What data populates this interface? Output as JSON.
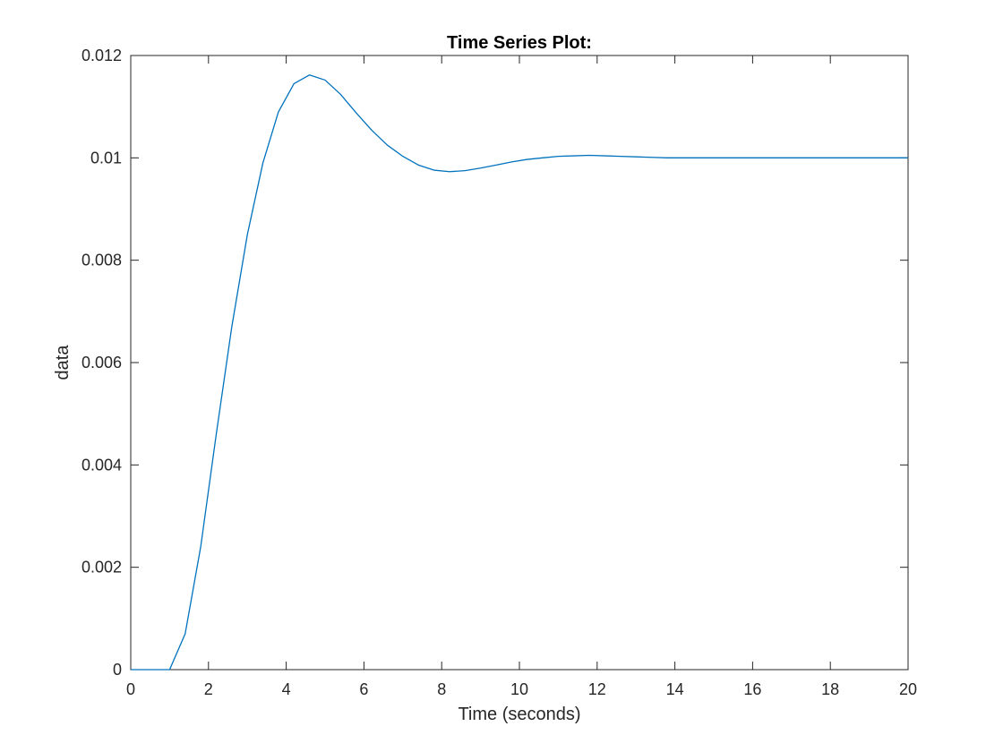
{
  "chart_data": {
    "type": "line",
    "title": "Time Series Plot:",
    "xlabel": "Time (seconds)",
    "ylabel": "data",
    "xlim": [
      0,
      20
    ],
    "ylim": [
      0,
      0.012
    ],
    "xticks": [
      0,
      2,
      4,
      6,
      8,
      10,
      12,
      14,
      16,
      18,
      20
    ],
    "xtick_labels": [
      "0",
      "2",
      "4",
      "6",
      "8",
      "10",
      "12",
      "14",
      "16",
      "18",
      "20"
    ],
    "yticks": [
      0,
      0.002,
      0.004,
      0.006,
      0.008,
      0.01,
      0.012
    ],
    "ytick_labels": [
      "0",
      "0.002",
      "0.004",
      "0.006",
      "0.008",
      "0.01",
      "0.012"
    ],
    "grid": false,
    "legend": "none",
    "series": [
      {
        "color": "#0072bd",
        "x": [
          0,
          0.2,
          0.4,
          0.6,
          0.8,
          1.0,
          1.4,
          1.8,
          2.2,
          2.6,
          3.0,
          3.4,
          3.8,
          4.2,
          4.6,
          5.0,
          5.4,
          5.8,
          6.2,
          6.6,
          7.0,
          7.4,
          7.8,
          8.2,
          8.6,
          9.0,
          9.4,
          9.8,
          10.2,
          10.6,
          11.0,
          11.4,
          11.8,
          12.2,
          12.6,
          13.0,
          13.4,
          13.8,
          14.2,
          14.6,
          15.0,
          15.4,
          15.8,
          16.2,
          16.6,
          17.0,
          17.4,
          17.8,
          18.2,
          18.6,
          19.0,
          19.4,
          19.8,
          20.0
        ],
        "y": [
          0,
          0,
          0,
          0,
          0,
          0,
          0.0007,
          0.0024,
          0.0046,
          0.0067,
          0.0085,
          0.0099,
          0.0109,
          0.01145,
          0.01162,
          0.01152,
          0.01124,
          0.01088,
          0.01054,
          0.01025,
          0.01003,
          0.00986,
          0.00976,
          0.00973,
          0.00975,
          0.0098,
          0.00986,
          0.00992,
          0.00997,
          0.01,
          0.01003,
          0.01004,
          0.01005,
          0.01004,
          0.01003,
          0.01002,
          0.01001,
          0.01,
          0.01,
          0.01,
          0.01,
          0.01,
          0.01,
          0.01,
          0.01,
          0.01,
          0.01,
          0.01,
          0.01,
          0.01,
          0.01,
          0.01,
          0.01,
          0.01
        ]
      }
    ]
  }
}
